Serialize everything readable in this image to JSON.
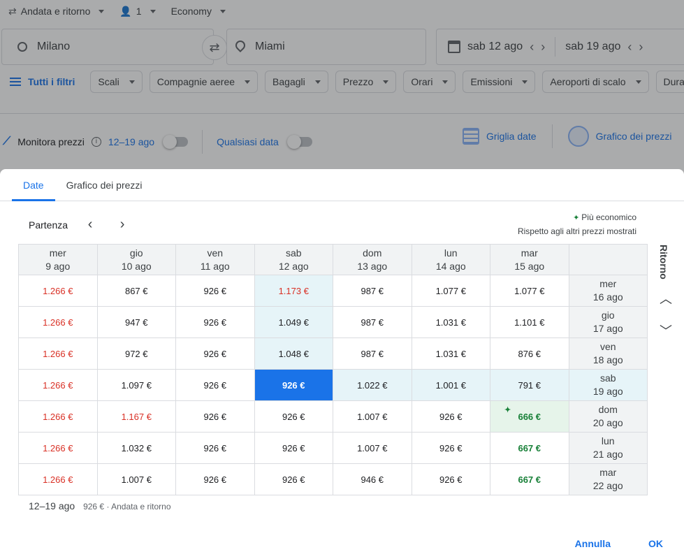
{
  "top": {
    "trip_type": "Andata e ritorno",
    "passengers": "1",
    "cabin": "Economy"
  },
  "search": {
    "from": "Milano",
    "to": "Miami",
    "depart_date": "sab 12 ago",
    "return_date": "sab 19 ago"
  },
  "filters": {
    "all_label": "Tutti i filtri",
    "chips": [
      "Scali",
      "Compagnie aeree",
      "Bagagli",
      "Prezzo",
      "Orari",
      "Emissioni",
      "Aeroporti di scalo",
      "Durata"
    ]
  },
  "tracking": {
    "label": "Monitora prezzi",
    "range": "12–19 ago",
    "any_date": "Qualsiasi data",
    "grid_view": "Griglia date",
    "chart_view": "Grafico dei prezzi"
  },
  "dialog": {
    "tabs": [
      "Date",
      "Grafico dei prezzi"
    ],
    "partenza_label": "Partenza",
    "legend_title": "Più economico",
    "legend_sub": "Rispetto agli altri prezzi mostrati",
    "ritorno_label": "Ritorno",
    "columns": [
      {
        "day": "mer",
        "date": "9 ago"
      },
      {
        "day": "gio",
        "date": "10 ago"
      },
      {
        "day": "ven",
        "date": "11 ago"
      },
      {
        "day": "sab",
        "date": "12 ago"
      },
      {
        "day": "dom",
        "date": "13 ago"
      },
      {
        "day": "lun",
        "date": "14 ago"
      },
      {
        "day": "mar",
        "date": "15 ago"
      }
    ],
    "rows": [
      {
        "day": "mer",
        "date": "16 ago",
        "prices": [
          "1.266 €",
          "867 €",
          "926 €",
          "1.173 €",
          "987 €",
          "1.077 €",
          "1.077 €"
        ]
      },
      {
        "day": "gio",
        "date": "17 ago",
        "prices": [
          "1.266 €",
          "947 €",
          "926 €",
          "1.049 €",
          "987 €",
          "1.031 €",
          "1.101 €"
        ]
      },
      {
        "day": "ven",
        "date": "18 ago",
        "prices": [
          "1.266 €",
          "972 €",
          "926 €",
          "1.048 €",
          "987 €",
          "1.031 €",
          "876 €"
        ]
      },
      {
        "day": "sab",
        "date": "19 ago",
        "prices": [
          "1.266 €",
          "1.097 €",
          "926 €",
          "926 €",
          "1.022 €",
          "1.001 €",
          "791 €"
        ]
      },
      {
        "day": "dom",
        "date": "20 ago",
        "prices": [
          "1.266 €",
          "1.167 €",
          "926 €",
          "926 €",
          "1.007 €",
          "926 €",
          "666 €"
        ]
      },
      {
        "day": "lun",
        "date": "21 ago",
        "prices": [
          "1.266 €",
          "1.032 €",
          "926 €",
          "926 €",
          "1.007 €",
          "926 €",
          "667 €"
        ]
      },
      {
        "day": "mar",
        "date": "22 ago",
        "prices": [
          "1.266 €",
          "1.007 €",
          "926 €",
          "926 €",
          "946 €",
          "926 €",
          "667 €"
        ]
      }
    ],
    "summary_dates": "12–19 ago",
    "summary_price": "926 € · Andata e ritorno",
    "cancel": "Annulla",
    "ok": "OK"
  }
}
